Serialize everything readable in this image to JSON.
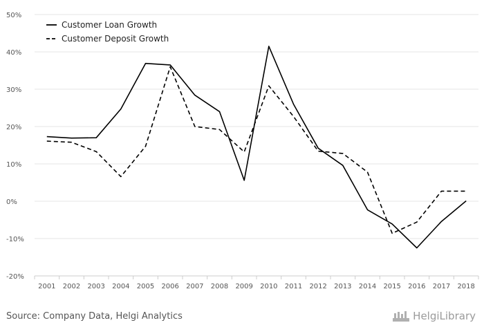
{
  "source_text": "Source: Company Data, Helgi Analytics",
  "brand_text": "HelgiLibrary",
  "chart_data": {
    "type": "line",
    "title": "",
    "xlabel": "",
    "ylabel": "",
    "categories": [
      "2001",
      "2002",
      "2003",
      "2004",
      "2005",
      "2006",
      "2007",
      "2008",
      "2009",
      "2010",
      "2011",
      "2012",
      "2013",
      "2014",
      "2015",
      "2016",
      "2017",
      "2018"
    ],
    "ylim": [
      -20,
      50
    ],
    "yticks": [
      -20,
      -10,
      0,
      10,
      20,
      30,
      40,
      50
    ],
    "ytick_labels": [
      "-20%",
      "-10%",
      "0%",
      "10%",
      "20%",
      "30%",
      "40%",
      "50%"
    ],
    "grid": "horizontal",
    "legend_position": "top-left",
    "series": [
      {
        "name": "Customer Loan Growth",
        "style": "solid",
        "color": "#000000",
        "values": [
          17.3,
          16.9,
          17.0,
          24.7,
          36.9,
          36.5,
          28.4,
          24.0,
          5.6,
          41.5,
          26.0,
          14.2,
          9.6,
          -2.3,
          -6.1,
          -12.5,
          -5.4,
          0.1
        ]
      },
      {
        "name": "Customer Deposit Growth",
        "style": "dashed",
        "color": "#000000",
        "values": [
          16.1,
          15.8,
          13.3,
          6.6,
          14.7,
          36.0,
          20.0,
          19.2,
          13.2,
          30.9,
          22.7,
          13.4,
          12.8,
          7.8,
          -8.6,
          -5.6,
          2.7,
          2.7
        ]
      }
    ]
  }
}
